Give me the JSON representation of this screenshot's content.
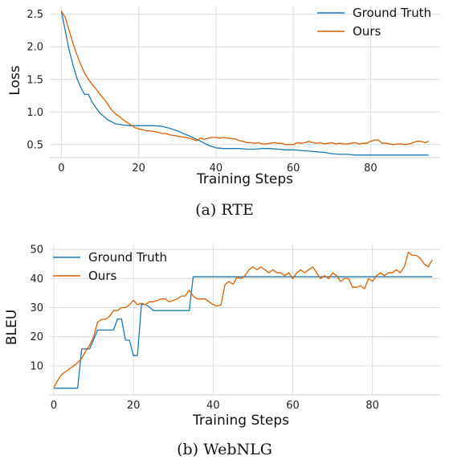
{
  "chart_data": [
    {
      "type": "line",
      "caption": "(a)  RTE",
      "xlabel": "Training Steps",
      "ylabel": "Loss",
      "xlim": [
        -3,
        98
      ],
      "ylim": [
        0.3,
        2.62
      ],
      "xticks": [
        0,
        20,
        40,
        60,
        80
      ],
      "yticks": [
        0.5,
        1.0,
        1.5,
        2.0,
        2.5
      ],
      "ytick_labels": [
        "0.5",
        "1.0",
        "1.5",
        "2.0",
        "2.5"
      ],
      "grid": true,
      "legend": "top-right",
      "series": [
        {
          "name": "Ground Truth",
          "color": "#1f77b4",
          "x": [
            0,
            1,
            2,
            3,
            4,
            5,
            6,
            7,
            8,
            9,
            10,
            12,
            14,
            16,
            18,
            20,
            22,
            24,
            26,
            28,
            30,
            32,
            34,
            36,
            38,
            40,
            42,
            44,
            46,
            48,
            50,
            52,
            54,
            56,
            58,
            60,
            62,
            64,
            66,
            68,
            70,
            72,
            74,
            76,
            78,
            80,
            82,
            84,
            86,
            88,
            90,
            92,
            94,
            95
          ],
          "y": [
            2.55,
            2.25,
            1.95,
            1.72,
            1.52,
            1.38,
            1.27,
            1.27,
            1.15,
            1.06,
            0.98,
            0.88,
            0.82,
            0.8,
            0.79,
            0.79,
            0.79,
            0.79,
            0.78,
            0.75,
            0.71,
            0.66,
            0.61,
            0.55,
            0.49,
            0.45,
            0.44,
            0.44,
            0.44,
            0.43,
            0.43,
            0.44,
            0.44,
            0.43,
            0.42,
            0.42,
            0.41,
            0.4,
            0.39,
            0.38,
            0.36,
            0.35,
            0.35,
            0.34,
            0.34,
            0.34,
            0.34,
            0.34,
            0.34,
            0.34,
            0.34,
            0.34,
            0.34,
            0.34
          ]
        },
        {
          "name": "Ours",
          "color": "#d95f02",
          "x": [
            0,
            1,
            2,
            3,
            4,
            5,
            6,
            7,
            8,
            9,
            10,
            11,
            12,
            13,
            14,
            15,
            16,
            17,
            18,
            19,
            20,
            21,
            22,
            23,
            24,
            25,
            26,
            27,
            28,
            29,
            30,
            31,
            32,
            33,
            34,
            35,
            36,
            37,
            38,
            39,
            40,
            41,
            42,
            43,
            44,
            45,
            46,
            47,
            48,
            49,
            50,
            51,
            52,
            53,
            54,
            55,
            56,
            57,
            58,
            59,
            60,
            61,
            62,
            63,
            64,
            65,
            66,
            67,
            68,
            69,
            70,
            71,
            72,
            73,
            74,
            75,
            76,
            77,
            78,
            79,
            80,
            81,
            82,
            83,
            84,
            85,
            86,
            87,
            88,
            89,
            90,
            91,
            92,
            93,
            94,
            95
          ],
          "y": [
            2.55,
            2.45,
            2.25,
            2.05,
            1.88,
            1.73,
            1.6,
            1.5,
            1.42,
            1.35,
            1.27,
            1.2,
            1.12,
            1.03,
            0.97,
            0.93,
            0.88,
            0.84,
            0.8,
            0.76,
            0.74,
            0.73,
            0.71,
            0.71,
            0.7,
            0.69,
            0.67,
            0.67,
            0.65,
            0.64,
            0.63,
            0.62,
            0.61,
            0.6,
            0.58,
            0.56,
            0.6,
            0.58,
            0.6,
            0.61,
            0.61,
            0.6,
            0.61,
            0.6,
            0.59,
            0.59,
            0.56,
            0.55,
            0.53,
            0.53,
            0.52,
            0.53,
            0.51,
            0.51,
            0.52,
            0.53,
            0.52,
            0.52,
            0.5,
            0.5,
            0.5,
            0.53,
            0.52,
            0.53,
            0.55,
            0.53,
            0.52,
            0.53,
            0.51,
            0.52,
            0.53,
            0.51,
            0.52,
            0.51,
            0.51,
            0.52,
            0.53,
            0.51,
            0.52,
            0.52,
            0.55,
            0.57,
            0.57,
            0.52,
            0.52,
            0.51,
            0.5,
            0.51,
            0.51,
            0.5,
            0.51,
            0.53,
            0.55,
            0.55,
            0.53,
            0.55
          ]
        }
      ]
    },
    {
      "type": "line",
      "caption": "(b)  WebNLG",
      "xlabel": "Training Steps",
      "ylabel": "BLEU",
      "xlim": [
        -1,
        97
      ],
      "ylim": [
        0,
        52
      ],
      "xticks": [
        0,
        20,
        40,
        60,
        80
      ],
      "yticks": [
        10,
        20,
        30,
        40,
        50
      ],
      "ytick_labels": [
        "10",
        "20",
        "30",
        "40",
        "50"
      ],
      "grid": true,
      "legend": "top-left",
      "series": [
        {
          "name": "Ground Truth",
          "color": "#1f77b4",
          "x": [
            0,
            6,
            7,
            9,
            10,
            11,
            15,
            16,
            17,
            18,
            19,
            20,
            21,
            22,
            23,
            24,
            25,
            34,
            35,
            95
          ],
          "y": [
            2.3,
            2.3,
            15.8,
            15.8,
            19,
            22.3,
            22.3,
            26.1,
            26.1,
            18.8,
            18.8,
            13.5,
            13.5,
            31.1,
            31.1,
            30.2,
            29,
            29,
            40.6,
            40.6
          ]
        },
        {
          "name": "Ours",
          "color": "#d95f02",
          "x": [
            0,
            1,
            2,
            3,
            4,
            5,
            6,
            7,
            8,
            9,
            10,
            11,
            12,
            13,
            14,
            15,
            16,
            17,
            18,
            19,
            20,
            21,
            22,
            23,
            24,
            25,
            26,
            27,
            28,
            29,
            30,
            31,
            32,
            33,
            34,
            35,
            36,
            37,
            38,
            39,
            40,
            41,
            42,
            43,
            44,
            45,
            46,
            47,
            48,
            49,
            50,
            51,
            52,
            53,
            54,
            55,
            56,
            57,
            58,
            59,
            60,
            61,
            62,
            63,
            64,
            65,
            66,
            67,
            68,
            69,
            70,
            71,
            72,
            73,
            74,
            75,
            76,
            77,
            78,
            79,
            80,
            81,
            82,
            83,
            84,
            85,
            86,
            87,
            88,
            89,
            90,
            91,
            92,
            93,
            94,
            95
          ],
          "y": [
            2.5,
            5,
            7,
            8,
            9,
            10,
            11,
            12.5,
            15,
            17,
            20,
            25,
            26,
            26,
            27,
            29,
            29,
            30,
            30,
            31,
            32.5,
            31,
            31.5,
            31,
            32,
            32,
            32.5,
            33,
            33,
            32,
            32.5,
            33,
            34,
            34,
            36,
            34,
            33,
            33,
            33,
            32,
            31,
            30.5,
            31,
            38,
            39,
            38,
            40.5,
            40,
            41,
            43,
            44,
            43,
            44,
            43,
            42,
            43,
            42,
            42,
            41,
            42,
            40,
            42,
            43,
            42,
            43,
            44,
            42,
            40,
            41,
            40,
            42,
            41,
            39,
            40,
            40,
            37,
            37,
            37.5,
            36.5,
            40,
            39,
            41,
            42,
            41,
            42,
            42,
            43,
            42,
            44,
            49,
            48,
            48,
            47,
            45,
            44,
            46.5
          ]
        }
      ]
    }
  ]
}
